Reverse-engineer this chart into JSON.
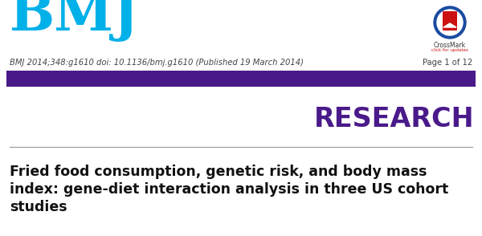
{
  "background_color": "#ffffff",
  "bmj_text": "BMJ",
  "bmj_color": "#00b0e8",
  "bmj_fontsize": 48,
  "header_line_text": "BMJ 2014;348:g1610 doi: 10.1136/bmj.g1610 (Published 19 March 2014)",
  "header_line_color": "#444444",
  "header_line_fontsize": 7.2,
  "page_text": "Page 1 of 12",
  "page_fontsize": 7.2,
  "page_color": "#444444",
  "purple_bar_color": "#4a1a8a",
  "research_text": "RESEARCH",
  "research_color": "#4a1a8a",
  "research_fontsize": 24,
  "divider_color": "#999999",
  "title_line1": "Fried food consumption, genetic risk, and body mass",
  "title_line2": "index: gene-diet interaction analysis in three US cohort",
  "title_line3": "studies",
  "title_color": "#111111",
  "title_fontsize": 12.5
}
